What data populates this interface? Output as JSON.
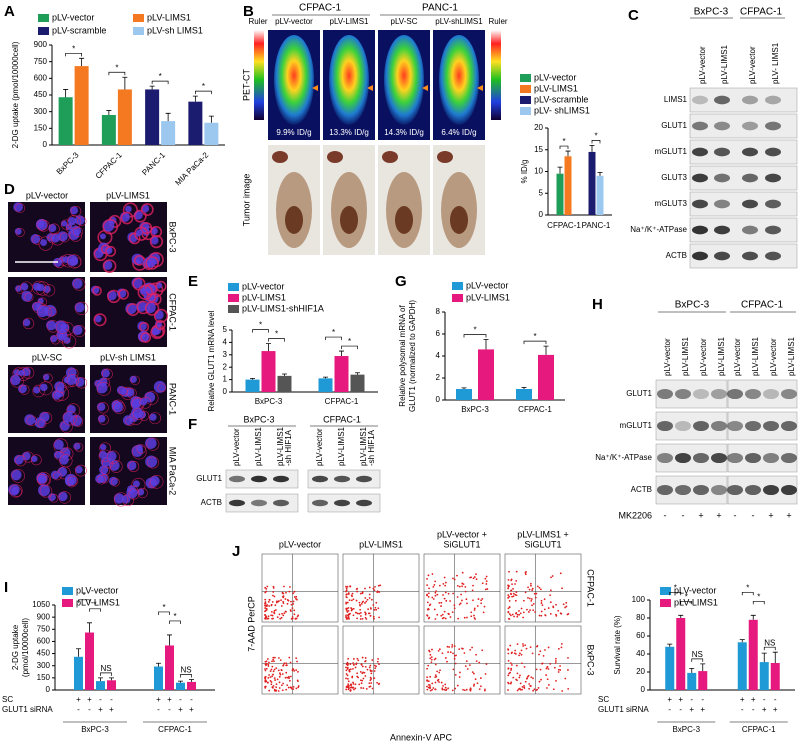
{
  "panel_letters": [
    "A",
    "B",
    "C",
    "D",
    "E",
    "F",
    "G",
    "H",
    "I",
    "J"
  ],
  "chart_data": [
    {
      "type": "bar",
      "y_label": "2-DG uptake (pmol/10000cell)",
      "categories": [
        "BxPC-3",
        "CFPAC-1",
        "PANC-1",
        "MIA PaCa-2"
      ],
      "series": [
        {
          "name": "pLV-vector",
          "color": "#1f9e5a",
          "values": [
            430,
            270,
            null,
            null
          ],
          "errors": [
            70,
            40,
            null,
            null
          ]
        },
        {
          "name": "pLV-LIMS1",
          "color": "#f47920",
          "values": [
            710,
            500,
            null,
            null
          ],
          "errors": [
            70,
            110,
            null,
            null
          ]
        },
        {
          "name": "pLV-scramble",
          "color": "#1b1b6f",
          "values": [
            null,
            null,
            500,
            390
          ],
          "errors": [
            null,
            null,
            30,
            50
          ]
        },
        {
          "name": "pLV-sh LIMS1",
          "color": "#9cc8f0",
          "values": [
            null,
            null,
            215,
            200
          ],
          "errors": [
            null,
            null,
            70,
            60
          ]
        }
      ],
      "ylim": [
        0,
        900
      ],
      "yticks": [
        0,
        150,
        300,
        450,
        600,
        750,
        900
      ],
      "significance": [
        {
          "label": "*",
          "category": 0,
          "bars": [
            0,
            1
          ]
        },
        {
          "label": "*",
          "category": 1,
          "bars": [
            0,
            1
          ]
        },
        {
          "label": "*",
          "category": 2,
          "bars": [
            2,
            3
          ]
        },
        {
          "label": "*",
          "category": 3,
          "bars": [
            2,
            3
          ]
        }
      ]
    },
    {
      "type": "bar",
      "y_label": "% ID/g",
      "categories": [
        "CFPAC-1",
        "PANC-1"
      ],
      "series": [
        {
          "name": "pLV-vector",
          "color": "#1f9e5a",
          "values": [
            9.5,
            null
          ],
          "errors": [
            1.5,
            null
          ]
        },
        {
          "name": "pLV-LIMS1",
          "color": "#f47920",
          "values": [
            13.5,
            null
          ],
          "errors": [
            1.2,
            null
          ]
        },
        {
          "name": "pLV-scramble",
          "color": "#1b1b6f",
          "values": [
            null,
            14.5
          ],
          "errors": [
            null,
            1.5
          ]
        },
        {
          "name": "pLV- shLIMS1",
          "color": "#9cc8f0",
          "values": [
            null,
            9
          ],
          "errors": [
            null,
            0.8
          ]
        }
      ],
      "ylim": [
        0,
        20
      ],
      "yticks": [
        0,
        5,
        10,
        15,
        20
      ],
      "significance": [
        {
          "label": "*",
          "category": 0,
          "bars": [
            0,
            1
          ]
        },
        {
          "label": "*",
          "category": 1,
          "bars": [
            2,
            3
          ]
        }
      ]
    },
    {
      "type": "bar",
      "y_label": "Relative GLUT1 mRNA level",
      "categories": [
        "BxPC-3",
        "CFPAC-1"
      ],
      "series": [
        {
          "name": "pLV-vector",
          "color": "#1f9ad6",
          "values": [
            1.0,
            1.1
          ],
          "errors": [
            0.1,
            0.1
          ]
        },
        {
          "name": "pLV-LIMS1",
          "color": "#e6197e",
          "values": [
            3.3,
            2.9
          ],
          "errors": [
            0.6,
            0.4
          ]
        },
        {
          "name": "pLV-LIMS1-shHIF1A",
          "color": "#555555",
          "values": [
            1.3,
            1.4
          ],
          "errors": [
            0.15,
            0.15
          ]
        }
      ],
      "ylim": [
        0,
        5
      ],
      "yticks": [
        0,
        1,
        2,
        3,
        4,
        5
      ],
      "significance": [
        {
          "label": "*",
          "category": 0,
          "bars": [
            0,
            1
          ]
        },
        {
          "label": "*",
          "category": 0,
          "bars": [
            1,
            2
          ]
        },
        {
          "label": "*",
          "category": 1,
          "bars": [
            0,
            1
          ]
        },
        {
          "label": "*",
          "category": 1,
          "bars": [
            1,
            2
          ]
        }
      ]
    },
    {
      "type": "bar",
      "y_label": [
        "Relative polysomal mRNA of",
        "GLUT1 (normalized to GAPDH)"
      ],
      "categories": [
        "BxPC-3",
        "CFPAC-1"
      ],
      "series": [
        {
          "name": "pLV-vector",
          "color": "#1f9ad6",
          "values": [
            1.0,
            1.0
          ],
          "errors": [
            0.1,
            0.15
          ]
        },
        {
          "name": "pLV-LIMS1",
          "color": "#e6197e",
          "values": [
            4.6,
            4.1
          ],
          "errors": [
            0.9,
            0.8
          ]
        }
      ],
      "ylim": [
        0,
        8
      ],
      "yticks": [
        0,
        2,
        4,
        6,
        8
      ],
      "significance": [
        {
          "label": "*",
          "category": 0,
          "bars": [
            0,
            1
          ]
        },
        {
          "label": "*",
          "category": 1,
          "bars": [
            0,
            1
          ]
        }
      ]
    },
    {
      "type": "bar",
      "y_label": [
        "2-DG uptake",
        "(pmol/10000cell)"
      ],
      "categories": [
        "BxPC-3",
        "CFPAC-1"
      ],
      "condition_rows": [
        {
          "label": "SC",
          "signs": [
            "+",
            "+",
            "-",
            "-"
          ]
        },
        {
          "label": "GLUT1 siRNA",
          "signs": [
            "-",
            "-",
            "+",
            "+"
          ]
        }
      ],
      "series": [
        {
          "name": "pLV-vector",
          "color": "#1f9ad6",
          "values": [
            [
              410,
              110
            ],
            [
              290,
              90
            ]
          ],
          "errors": [
            [
              100,
              40
            ],
            [
              40,
              20
            ]
          ]
        },
        {
          "name": "pLV-LIMS1",
          "color": "#e6197e",
          "values": [
            [
              710,
              120
            ],
            [
              550,
              100
            ]
          ],
          "errors": [
            [
              120,
              30
            ],
            [
              130,
              30
            ]
          ]
        }
      ],
      "ylim": [
        0,
        1050
      ],
      "yticks": [
        0,
        150,
        300,
        450,
        600,
        750,
        900,
        1050
      ],
      "significance": [
        {
          "label": "*",
          "category": 0,
          "bars": [
            0,
            1
          ]
        },
        {
          "label": "*",
          "category": 0,
          "bars": [
            1,
            2
          ]
        },
        {
          "label": "NS",
          "category": 0,
          "bars": [
            2,
            3
          ]
        },
        {
          "label": "*",
          "category": 1,
          "bars": [
            0,
            1
          ]
        },
        {
          "label": "*",
          "category": 1,
          "bars": [
            1,
            2
          ]
        },
        {
          "label": "NS",
          "category": 1,
          "bars": [
            2,
            3
          ]
        }
      ]
    },
    {
      "type": "bar",
      "y_label": "Survival rate (%)",
      "categories": [
        "BxPC-3",
        "CFPAC-1"
      ],
      "condition_rows": [
        {
          "label": "SC",
          "signs": [
            "+",
            "+",
            "-",
            "-"
          ]
        },
        {
          "label": "GLUT1 siRNA",
          "signs": [
            "-",
            "-",
            "+",
            "+"
          ]
        }
      ],
      "series": [
        {
          "name": "pLV-vector",
          "color": "#1f9ad6",
          "values": [
            [
              48,
              19
            ],
            [
              53,
              31
            ]
          ],
          "errors": [
            [
              3,
              5
            ],
            [
              3,
              10
            ]
          ]
        },
        {
          "name": "pLV-LIMS1",
          "color": "#e6197e",
          "values": [
            [
              80,
              21
            ],
            [
              78,
              30
            ]
          ],
          "errors": [
            [
              3,
              8
            ],
            [
              5,
              12
            ]
          ]
        }
      ],
      "ylim": [
        0,
        100
      ],
      "yticks": [
        0,
        20,
        40,
        60,
        80,
        100
      ],
      "significance": [
        {
          "label": "*",
          "category": 0,
          "bars": [
            0,
            1
          ]
        },
        {
          "label": "*",
          "category": 0,
          "bars": [
            1,
            2
          ]
        },
        {
          "label": "NS",
          "category": 0,
          "bars": [
            2,
            3
          ]
        },
        {
          "label": "*",
          "category": 1,
          "bars": [
            0,
            1
          ]
        },
        {
          "label": "*",
          "category": 1,
          "bars": [
            1,
            2
          ]
        },
        {
          "label": "NS",
          "category": 1,
          "bars": [
            2,
            3
          ]
        }
      ]
    }
  ],
  "pet_ct": {
    "cell_lines": [
      "CFPAC-1",
      "PANC-1"
    ],
    "ruler": "Ruler",
    "groups": [
      "pLV-vector",
      "pLV-LIMS1",
      "pLV-SC",
      "pLV-shLIMS1"
    ],
    "uptake": [
      "9.9% ID/g",
      "13.3% ID/g",
      "14.3% ID/g",
      "6.4% ID/g"
    ],
    "row_labels": [
      "PET-CT",
      "Tumor image"
    ]
  },
  "blot_c": {
    "cell_lines": [
      "BxPC-3",
      "CFPAC-1"
    ],
    "lanes": [
      "pLV-vector",
      "pLV-LIMS1",
      "pLV-vector",
      "pLV- LIMS1"
    ],
    "rows": [
      "LIMS1",
      "GLUT1",
      "mGLUT1",
      "GLUT3",
      "mGLUT3",
      "Na⁺/K⁺-ATPase",
      "ACTB"
    ]
  },
  "microscopy_d": {
    "top_labels": [
      "pLV-vector",
      "pLV-LIMS1"
    ],
    "bottom_labels": [
      "pLV-SC",
      "pLV-sh LIMS1"
    ],
    "cell_lines": [
      "BxPC-3",
      "CFPAC-1",
      "PANC-1",
      "MIA PaCa-2"
    ]
  },
  "blot_f": {
    "cell_lines": [
      "BxPC-3",
      "CFPAC-1"
    ],
    "lanes": [
      [
        "pLV-vector"
      ],
      [
        "pLV-LIMS1"
      ],
      [
        "pLV-LIMS1",
        "-sh HIF1A"
      ]
    ],
    "rows": [
      "GLUT1",
      "ACTB"
    ]
  },
  "blot_h": {
    "cell_lines": [
      "BxPC-3",
      "CFPAC-1"
    ],
    "lanes": [
      "pLV-vector",
      "pLV-LIMS1",
      "pLV-vector",
      "pLV-LIMS1"
    ],
    "rows": [
      "GLUT1",
      "mGLUT1",
      "Na⁺/K⁺-ATPase",
      "ACTB"
    ],
    "treatment": "MK2206",
    "treatment_signs": [
      "-",
      "-",
      "+",
      "+"
    ]
  },
  "flow_j": {
    "conditions": [
      [
        "pLV-vector"
      ],
      [
        "pLV-LIMS1"
      ],
      [
        "pLV-vector +",
        "SiGLUT1"
      ],
      [
        "pLV-LIMS1 +",
        "SiGLUT1"
      ]
    ],
    "cell_lines": [
      "CFPAC-1",
      "BxPC-3"
    ],
    "y_label": "7-AAD PerCP",
    "x_label": "Annexin-V APC"
  }
}
